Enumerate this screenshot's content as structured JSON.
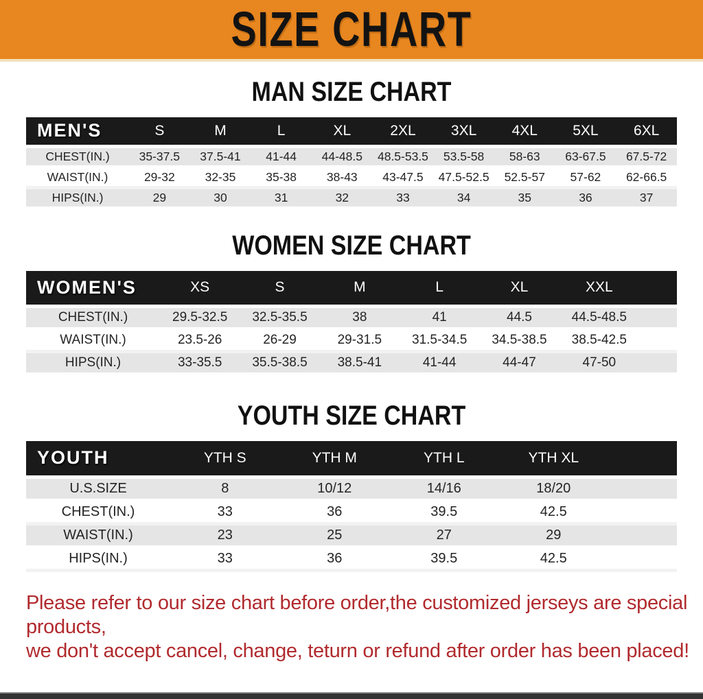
{
  "banner": {
    "title": "SIZE CHART"
  },
  "sections": [
    {
      "title": "MAN SIZE CHART",
      "columns": [
        "MEN'S",
        "S",
        "M",
        "L",
        "XL",
        "2XL",
        "3XL",
        "4XL",
        "5XL",
        "6XL"
      ],
      "rows": [
        [
          "CHEST(IN.)",
          "35-37.5",
          "37.5-41",
          "41-44",
          "44-48.5",
          "48.5-53.5",
          "53.5-58",
          "58-63",
          "63-67.5",
          "67.5-72"
        ],
        [
          "WAIST(IN.)",
          "29-32",
          "32-35",
          "35-38",
          "38-43",
          "43-47.5",
          "47.5-52.5",
          "52.5-57",
          "57-62",
          "62-66.5"
        ],
        [
          "HIPS(IN.)",
          "29",
          "30",
          "31",
          "32",
          "33",
          "34",
          "35",
          "36",
          "37"
        ]
      ]
    },
    {
      "title": "WOMEN SIZE CHART",
      "columns": [
        "WOMEN'S",
        "XS",
        "S",
        "M",
        "L",
        "XL",
        "XXL"
      ],
      "rows": [
        [
          "CHEST(IN.)",
          "29.5-32.5",
          "32.5-35.5",
          "38",
          "41",
          "44.5",
          "44.5-48.5"
        ],
        [
          "WAIST(IN.)",
          "23.5-26",
          "26-29",
          "29-31.5",
          "31.5-34.5",
          "34.5-38.5",
          "38.5-42.5"
        ],
        [
          "HIPS(IN.)",
          "33-35.5",
          "35.5-38.5",
          "38.5-41",
          "41-44",
          "44-47",
          "47-50"
        ]
      ]
    },
    {
      "title": "YOUTH SIZE CHART",
      "columns": [
        "YOUTH",
        "YTH S",
        "YTH M",
        "YTH L",
        "YTH XL"
      ],
      "rows": [
        [
          "U.S.SIZE",
          "8",
          "10/12",
          "14/16",
          "18/20"
        ],
        [
          "CHEST(IN.)",
          "33",
          "36",
          "39.5",
          "42.5"
        ],
        [
          "WAIST(IN.)",
          "23",
          "25",
          "27",
          "29"
        ],
        [
          "HIPS(IN.)",
          "33",
          "36",
          "39.5",
          "42.5"
        ]
      ]
    }
  ],
  "footer": {
    "line1": "Please refer to our size chart before order,the customized jerseys are special products,",
    "line2": "we don't accept cancel, change, teturn or refund after order has been placed!"
  },
  "colors": {
    "banner_bg": "#e8861f",
    "header_bg": "#1a1a1a",
    "row_alt_bg": "#e5e5e5",
    "footer_text": "#b12a2e",
    "bottom_bar": "#333333"
  }
}
